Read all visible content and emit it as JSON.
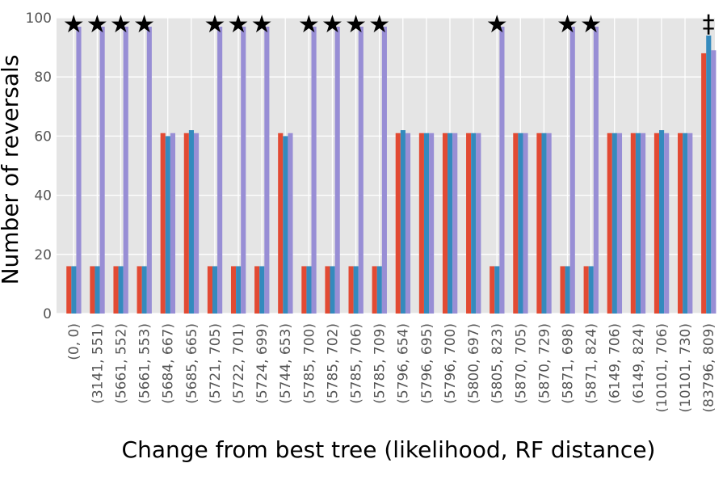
{
  "chart_data": {
    "type": "bar",
    "title": "",
    "xlabel": "Change from best tree (likelihood, RF distance)",
    "ylabel": "Number of reversals",
    "ylim": [
      0,
      100
    ],
    "yticks": [
      "0",
      "20",
      "40",
      "60",
      "80",
      "100"
    ],
    "grid": true,
    "categories": [
      "(0, 0)",
      "(3141, 551)",
      "(5661, 552)",
      "(5661, 553)",
      "(5684, 667)",
      "(5685, 665)",
      "(5721, 705)",
      "(5722, 701)",
      "(5724, 699)",
      "(5744, 653)",
      "(5785, 700)",
      "(5785, 702)",
      "(5785, 706)",
      "(5785, 709)",
      "(5796, 654)",
      "(5796, 695)",
      "(5796, 700)",
      "(5800, 697)",
      "(5805, 823)",
      "(5870, 705)",
      "(5870, 729)",
      "(5871, 698)",
      "(5871, 824)",
      "(6149, 706)",
      "(6149, 824)",
      "(10101, 706)",
      "(10101, 730)",
      "(83796, 809)"
    ],
    "series": [
      {
        "color": "#e24a33",
        "values": [
          16,
          16,
          16,
          16,
          61,
          61,
          16,
          16,
          16,
          61,
          16,
          16,
          16,
          16,
          61,
          61,
          61,
          61,
          16,
          61,
          61,
          16,
          16,
          61,
          61,
          61,
          61,
          88
        ]
      },
      {
        "color": "#348abd",
        "values": [
          16,
          16,
          16,
          16,
          60,
          62,
          16,
          16,
          16,
          60,
          16,
          16,
          16,
          16,
          62,
          61,
          61,
          61,
          16,
          61,
          61,
          16,
          16,
          61,
          61,
          62,
          61,
          94
        ]
      },
      {
        "color": "#988ed5",
        "values": [
          97,
          97,
          97,
          97,
          61,
          61,
          97,
          97,
          97,
          61,
          97,
          97,
          97,
          97,
          61,
          61,
          61,
          61,
          97,
          61,
          61,
          97,
          97,
          61,
          61,
          61,
          61,
          89
        ]
      }
    ],
    "markers": [
      "★",
      "★",
      "★",
      "★",
      "",
      "",
      "★",
      "★",
      "★",
      "",
      "★",
      "★",
      "★",
      "★",
      "",
      "",
      "",
      "",
      "★",
      "",
      "",
      "★",
      "★",
      "",
      "",
      "",
      "",
      "‡"
    ]
  }
}
